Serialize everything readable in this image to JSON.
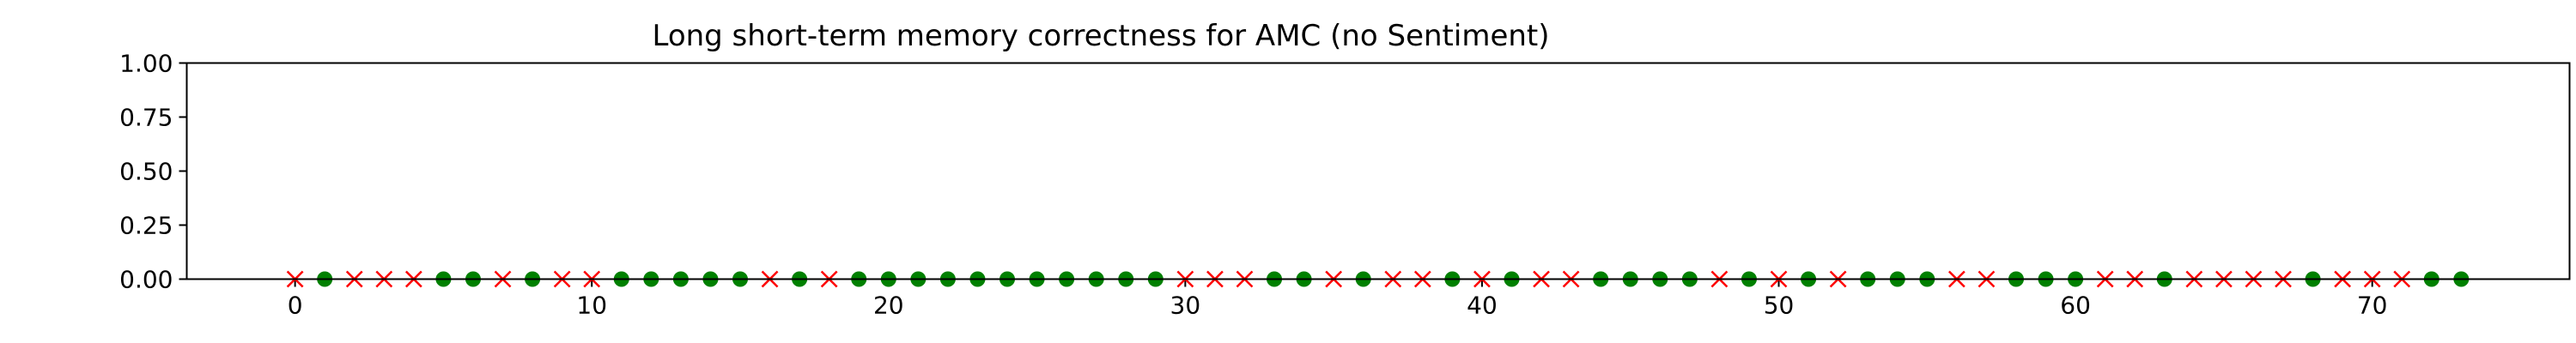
{
  "chart_data": {
    "type": "scatter",
    "title": "Long short-term memory correctness for AMC (no Sentiment)",
    "xlabel": "",
    "ylabel": "",
    "xlim": [
      -3.65,
      76.65
    ],
    "ylim": [
      0.0,
      1.0
    ],
    "xticks": [
      0,
      10,
      20,
      30,
      40,
      50,
      60,
      70
    ],
    "yticks": [
      0.0,
      0.25,
      0.5,
      0.75,
      1.0
    ],
    "ytick_labels": [
      "0.00",
      "0.25",
      "0.50",
      "0.75",
      "1.00"
    ],
    "grid": false,
    "legend": "none",
    "series": [
      {
        "marker": "x",
        "color": "#ff0000",
        "x": [
          0,
          2,
          3,
          4,
          7,
          9,
          10,
          16,
          18,
          30,
          31,
          32,
          35,
          37,
          38,
          40,
          42,
          43,
          48,
          50,
          52,
          56,
          57,
          61,
          62,
          64,
          65,
          66,
          67,
          69,
          70,
          71
        ],
        "y": [
          0,
          0,
          0,
          0,
          0,
          0,
          0,
          0,
          0,
          0,
          0,
          0,
          0,
          0,
          0,
          0,
          0,
          0,
          0,
          0,
          0,
          0,
          0,
          0,
          0,
          0,
          0,
          0,
          0,
          0,
          0,
          0
        ]
      },
      {
        "marker": "o",
        "color": "#008000",
        "x": [
          1,
          5,
          6,
          8,
          11,
          12,
          13,
          14,
          15,
          17,
          19,
          20,
          21,
          22,
          23,
          24,
          25,
          26,
          27,
          28,
          29,
          33,
          34,
          36,
          39,
          41,
          44,
          45,
          46,
          47,
          49,
          51,
          53,
          54,
          55,
          58,
          59,
          60,
          63,
          68,
          72,
          73
        ],
        "y": [
          0,
          0,
          0,
          0,
          0,
          0,
          0,
          0,
          0,
          0,
          0,
          0,
          0,
          0,
          0,
          0,
          0,
          0,
          0,
          0,
          0,
          0,
          0,
          0,
          0,
          0,
          0,
          0,
          0,
          0,
          0,
          0,
          0,
          0,
          0,
          0,
          0,
          0,
          0,
          0,
          0,
          0
        ]
      }
    ]
  }
}
